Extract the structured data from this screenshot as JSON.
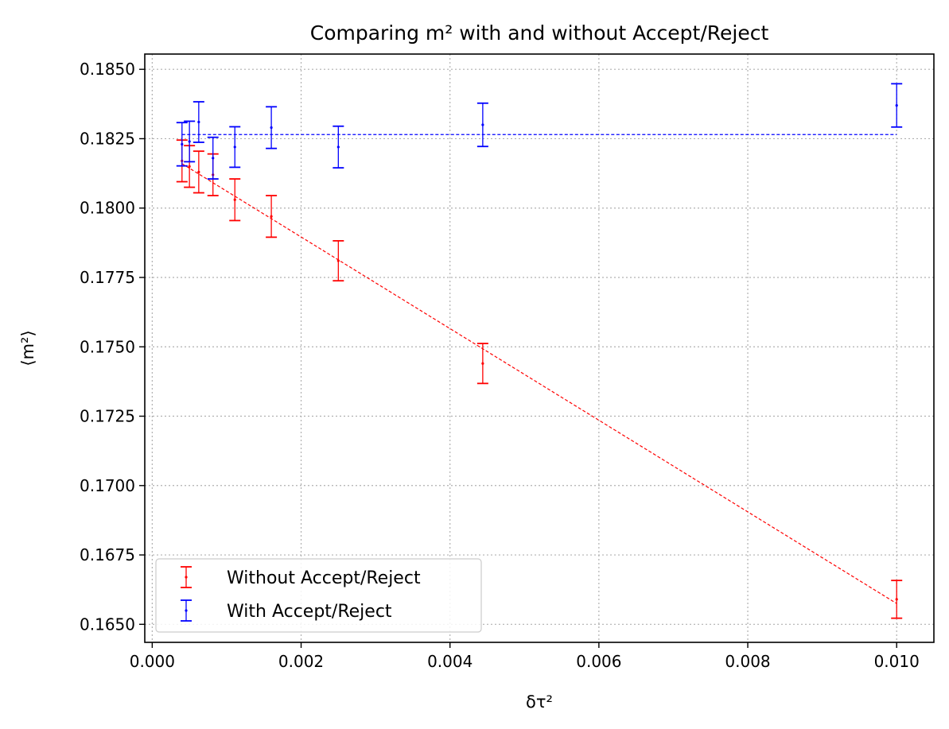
{
  "chart_data": {
    "type": "errorbar",
    "title": "Comparing m² with and without Accept/Reject",
    "xlabel": "δτ²",
    "ylabel": "⟨m²⟩",
    "xlim": [
      -0.0001,
      0.0105
    ],
    "ylim": [
      0.16435,
      0.18555
    ],
    "xticks": [
      0.0,
      0.002,
      0.004,
      0.006,
      0.008,
      0.01
    ],
    "xtick_labels": [
      "0.000",
      "0.002",
      "0.004",
      "0.006",
      "0.008",
      "0.010"
    ],
    "yticks": [
      0.165,
      0.1675,
      0.17,
      0.1725,
      0.175,
      0.1775,
      0.18,
      0.1825,
      0.185
    ],
    "ytick_labels": [
      "0.1650",
      "0.1675",
      "0.1700",
      "0.1725",
      "0.1750",
      "0.1775",
      "0.1800",
      "0.1825",
      "0.1850"
    ],
    "grid": true,
    "legend_position": "lower-left",
    "series": [
      {
        "name": "Without Accept/Reject",
        "color": "#ff0000",
        "x": [
          0.0004,
          0.0005,
          0.000625,
          0.000816,
          0.00111,
          0.0016,
          0.0025,
          0.00444,
          0.01
        ],
        "y": [
          0.1817,
          0.1815,
          0.1813,
          0.1812,
          0.1803,
          0.1797,
          0.1781,
          0.1744,
          0.1659
        ],
        "yerr": [
          0.00075,
          0.00075,
          0.00075,
          0.00075,
          0.00075,
          0.00075,
          0.00072,
          0.00072,
          0.00068
        ],
        "fit": {
          "x": [
            0.0004,
            0.01
          ],
          "y": [
            0.1816,
            0.16575
          ]
        }
      },
      {
        "name": "With Accept/Reject",
        "color": "#0000ff",
        "x": [
          0.0004,
          0.0005,
          0.000625,
          0.000816,
          0.00111,
          0.0016,
          0.0025,
          0.00444,
          0.01
        ],
        "y": [
          0.1823,
          0.1824,
          0.1831,
          0.1818,
          0.1822,
          0.1829,
          0.1822,
          0.183,
          0.1837
        ],
        "yerr": [
          0.00078,
          0.00073,
          0.00073,
          0.00075,
          0.00073,
          0.00075,
          0.00075,
          0.00078,
          0.00078
        ],
        "fit": {
          "x": [
            0.0004,
            0.01
          ],
          "y": [
            0.18265,
            0.18265
          ]
        }
      }
    ]
  }
}
